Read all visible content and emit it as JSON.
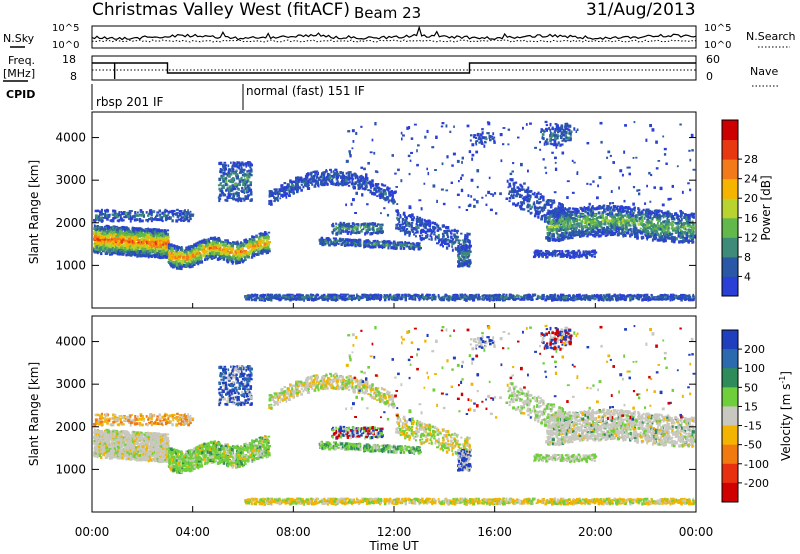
{
  "header": {
    "station": "Christmas Valley West (fitACF)",
    "beam": "Beam 23",
    "date": "31/Aug/2013"
  },
  "top_panels": {
    "nsky_label": "N.Sky",
    "nsky_ticks": [
      "10^5",
      "10^0"
    ],
    "nsearch_label": "N.Search",
    "nsearch_ticks": [
      "10^5",
      "10^0"
    ],
    "freq_label": "Freq.",
    "freq_unit": "[MHz]",
    "freq_ticks": [
      "18",
      "8"
    ],
    "nave_label": "Nave",
    "nave_ticks": [
      "60",
      "0"
    ],
    "cpid_label": "CPID",
    "cpid_segments": [
      {
        "label": "rbsp 201 IF",
        "start_h": 0.0
      },
      {
        "label": "normal (fast) 151 IF",
        "start_h": 6.0
      }
    ]
  },
  "chart_data": [
    {
      "type": "heatmap",
      "panel": "power",
      "xlabel": "Time UT",
      "ylabel": "Slant Range [km]",
      "x_range_hours": [
        0,
        24
      ],
      "x_ticks": [
        "00:00",
        "04:00",
        "08:00",
        "12:00",
        "16:00",
        "20:00",
        "00:00"
      ],
      "ylim": [
        0,
        4600
      ],
      "y_ticks": [
        "1000",
        "2000",
        "3000",
        "4000"
      ],
      "colorbar_label": "Power [dB]",
      "colorbar_ticks": [
        "4",
        "8",
        "12",
        "16",
        "20",
        "24",
        "28"
      ],
      "colors": [
        "#2a3fd6",
        "#2b58a6",
        "#3e8b7a",
        "#63b84c",
        "#b9d42f",
        "#f5b400",
        "#f37a1a",
        "#e8380f",
        "#cc0000"
      ]
    },
    {
      "type": "heatmap",
      "panel": "velocity",
      "xlabel": "Time UT",
      "ylabel": "Slant Range [km]",
      "x_range_hours": [
        0,
        24
      ],
      "ylim": [
        0,
        4600
      ],
      "y_ticks": [
        "1000",
        "2000",
        "3000",
        "4000"
      ],
      "colorbar_label": "Velocity [m s",
      "colorbar_unit_exp": "-1",
      "colorbar_label_end": "]",
      "colorbar_ticks": [
        "200",
        "100",
        "50",
        "15",
        "-15",
        "-50",
        "-100",
        "-200"
      ],
      "colors": [
        "#1f3fbf",
        "#2c6ab0",
        "#2e8b5a",
        "#6fcf3a",
        "#c8c8c0",
        "#f2b400",
        "#f07a10",
        "#e83010",
        "#d00000"
      ]
    }
  ]
}
